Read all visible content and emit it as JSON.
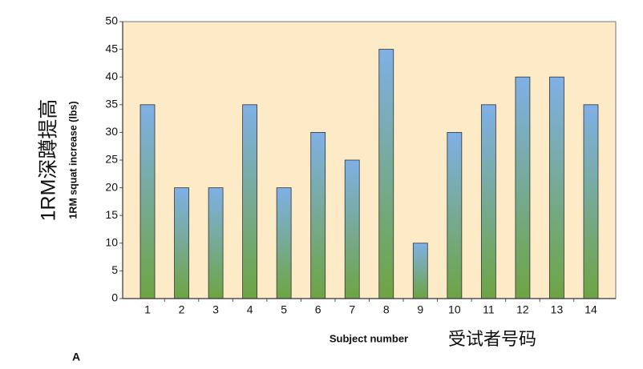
{
  "chart_data": {
    "type": "bar",
    "x_label": "Subject number",
    "x_label_cn": "受试者号码",
    "y_label": "1RM squat increase (lbs)",
    "y_label_cn": "1RM深蹲提高",
    "panel_label": "A",
    "categories": [
      "1",
      "2",
      "3",
      "4",
      "5",
      "6",
      "7",
      "8",
      "9",
      "10",
      "11",
      "12",
      "13",
      "14"
    ],
    "values": [
      35,
      20,
      20,
      35,
      20,
      30,
      25,
      45,
      10,
      30,
      35,
      40,
      40,
      35
    ],
    "color_top": "#7fb0e6",
    "color_bottom": "#6ea443",
    "background": "#fdebc8",
    "ylim": [
      0,
      50
    ],
    "yticks": [
      0,
      5,
      10,
      15,
      20,
      25,
      30,
      35,
      40,
      45,
      50
    ]
  }
}
